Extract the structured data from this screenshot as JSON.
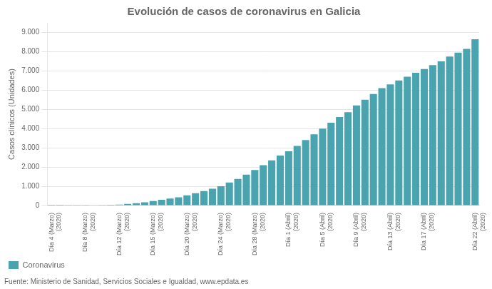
{
  "chart_data": {
    "type": "bar",
    "title": "Evolución de casos de coronavirus en Galicia",
    "y_label": "Casos clínicos (Unidades)",
    "annotations": [
      "Fuente: Ministerio de Sanidad, Servicios Sociales e Igualdad, www.epdata.es"
    ],
    "categories": [
      "Día 4 (Marzo)\n(2020)",
      null,
      null,
      null,
      "Día 8 (Marzo)\n(2020)",
      null,
      null,
      null,
      "Día 12 (Marzo)\n(2020)",
      null,
      null,
      null,
      "Día 15 (Marzo)\n(2020)",
      null,
      null,
      null,
      "Día 20 (Marzo)\n(2020)",
      null,
      null,
      null,
      "Día 24 (Marzo)\n(2020)",
      null,
      null,
      null,
      "Día 28 (Marzo)\n(2020)",
      null,
      null,
      null,
      "Día 1 (Abril)\n(2020)",
      null,
      null,
      null,
      "Día 5 (Abril)\n(2020)",
      null,
      null,
      null,
      "Día 9 (Abril)\n(2020)",
      null,
      null,
      null,
      "Día 13 (Abril)\n(2020)",
      null,
      null,
      null,
      "Día 17 (Abril)\n(2020)",
      null,
      null,
      null,
      null,
      null,
      "Día 22 (Abril)\n(2020)"
    ],
    "series": [
      {
        "name": "Coronavirus",
        "color": "#4aa4b0",
        "values": [
          3,
          4,
          5,
          8,
          12,
          18,
          25,
          35,
          50,
          80,
          120,
          170,
          230,
          295,
          360,
          430,
          530,
          640,
          750,
          870,
          1000,
          1200,
          1380,
          1600,
          1850,
          2100,
          2350,
          2600,
          2820,
          3100,
          3400,
          3700,
          4000,
          4300,
          4600,
          4850,
          5200,
          5500,
          5800,
          6100,
          6300,
          6500,
          6700,
          6900,
          7100,
          7300,
          7500,
          7750,
          7950,
          8150,
          8650
        ]
      }
    ],
    "ylim": [
      0,
      9500
    ],
    "yticks": [
      0,
      {
        "value": 1000,
        "label": "1.000"
      },
      {
        "value": 2000,
        "label": "2.000"
      },
      {
        "value": 3000,
        "label": "3.000"
      },
      {
        "value": 4000,
        "label": "4.000"
      },
      {
        "value": 5000,
        "label": "5.000"
      },
      {
        "value": 6000,
        "label": "6.000"
      },
      {
        "value": 7000,
        "label": "7.000"
      },
      {
        "value": 8000,
        "label": "8.000"
      },
      {
        "value": 9000,
        "label": "9.000"
      }
    ],
    "grid": true,
    "legend": "lower left"
  }
}
